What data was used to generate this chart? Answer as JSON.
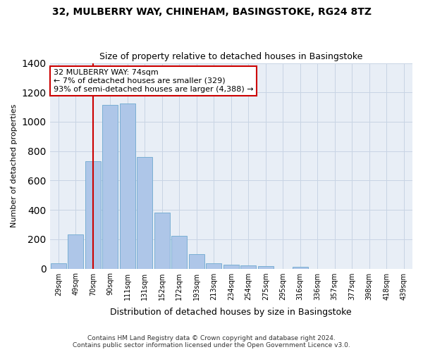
{
  "title_line1": "32, MULBERRY WAY, CHINEHAM, BASINGSTOKE, RG24 8TZ",
  "title_line2": "Size of property relative to detached houses in Basingstoke",
  "xlabel": "Distribution of detached houses by size in Basingstoke",
  "ylabel": "Number of detached properties",
  "bar_labels": [
    "29sqm",
    "49sqm",
    "70sqm",
    "90sqm",
    "111sqm",
    "131sqm",
    "152sqm",
    "172sqm",
    "193sqm",
    "213sqm",
    "234sqm",
    "254sqm",
    "275sqm",
    "295sqm",
    "316sqm",
    "336sqm",
    "357sqm",
    "377sqm",
    "398sqm",
    "418sqm",
    "439sqm"
  ],
  "bar_values": [
    35,
    235,
    730,
    1115,
    1125,
    760,
    380,
    225,
    100,
    35,
    25,
    20,
    15,
    0,
    10,
    0,
    0,
    0,
    0,
    0,
    0
  ],
  "bar_color": "#aec6e8",
  "bar_edgecolor": "#7aafd4",
  "vline_x": 2,
  "vline_color": "#cc0000",
  "ylim": [
    0,
    1400
  ],
  "yticks": [
    0,
    200,
    400,
    600,
    800,
    1000,
    1200,
    1400
  ],
  "annotation_text": "32 MULBERRY WAY: 74sqm\n← 7% of detached houses are smaller (329)\n93% of semi-detached houses are larger (4,388) →",
  "annotation_box_color": "#ffffff",
  "annotation_box_edgecolor": "#cc0000",
  "footer_line1": "Contains HM Land Registry data © Crown copyright and database right 2024.",
  "footer_line2": "Contains public sector information licensed under the Open Government Licence v3.0.",
  "grid_color": "#c8d4e4",
  "background_color": "#e8eef6"
}
